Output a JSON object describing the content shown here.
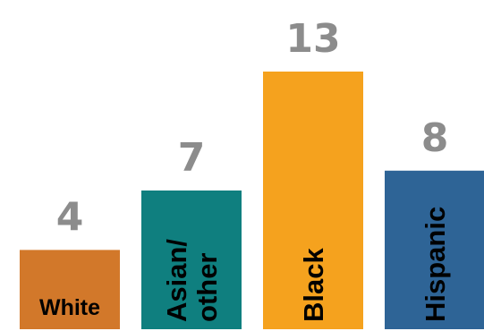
{
  "chart_data": {
    "type": "bar",
    "title": "",
    "xlabel": "",
    "ylabel": "",
    "categories": [
      "White",
      "Asian/\nother",
      "Black",
      "Hispanic"
    ],
    "values": [
      4,
      7,
      13,
      8
    ],
    "ylim": [
      0,
      13
    ],
    "grid": false,
    "legend": "none",
    "bar_colors": [
      "#d2782a",
      "#0f7f7f",
      "#f5a21e",
      "#2e6496"
    ],
    "value_label_color": "#8c8c8c",
    "label_orientation": [
      "horizontal",
      "vertical",
      "vertical",
      "vertical"
    ]
  }
}
